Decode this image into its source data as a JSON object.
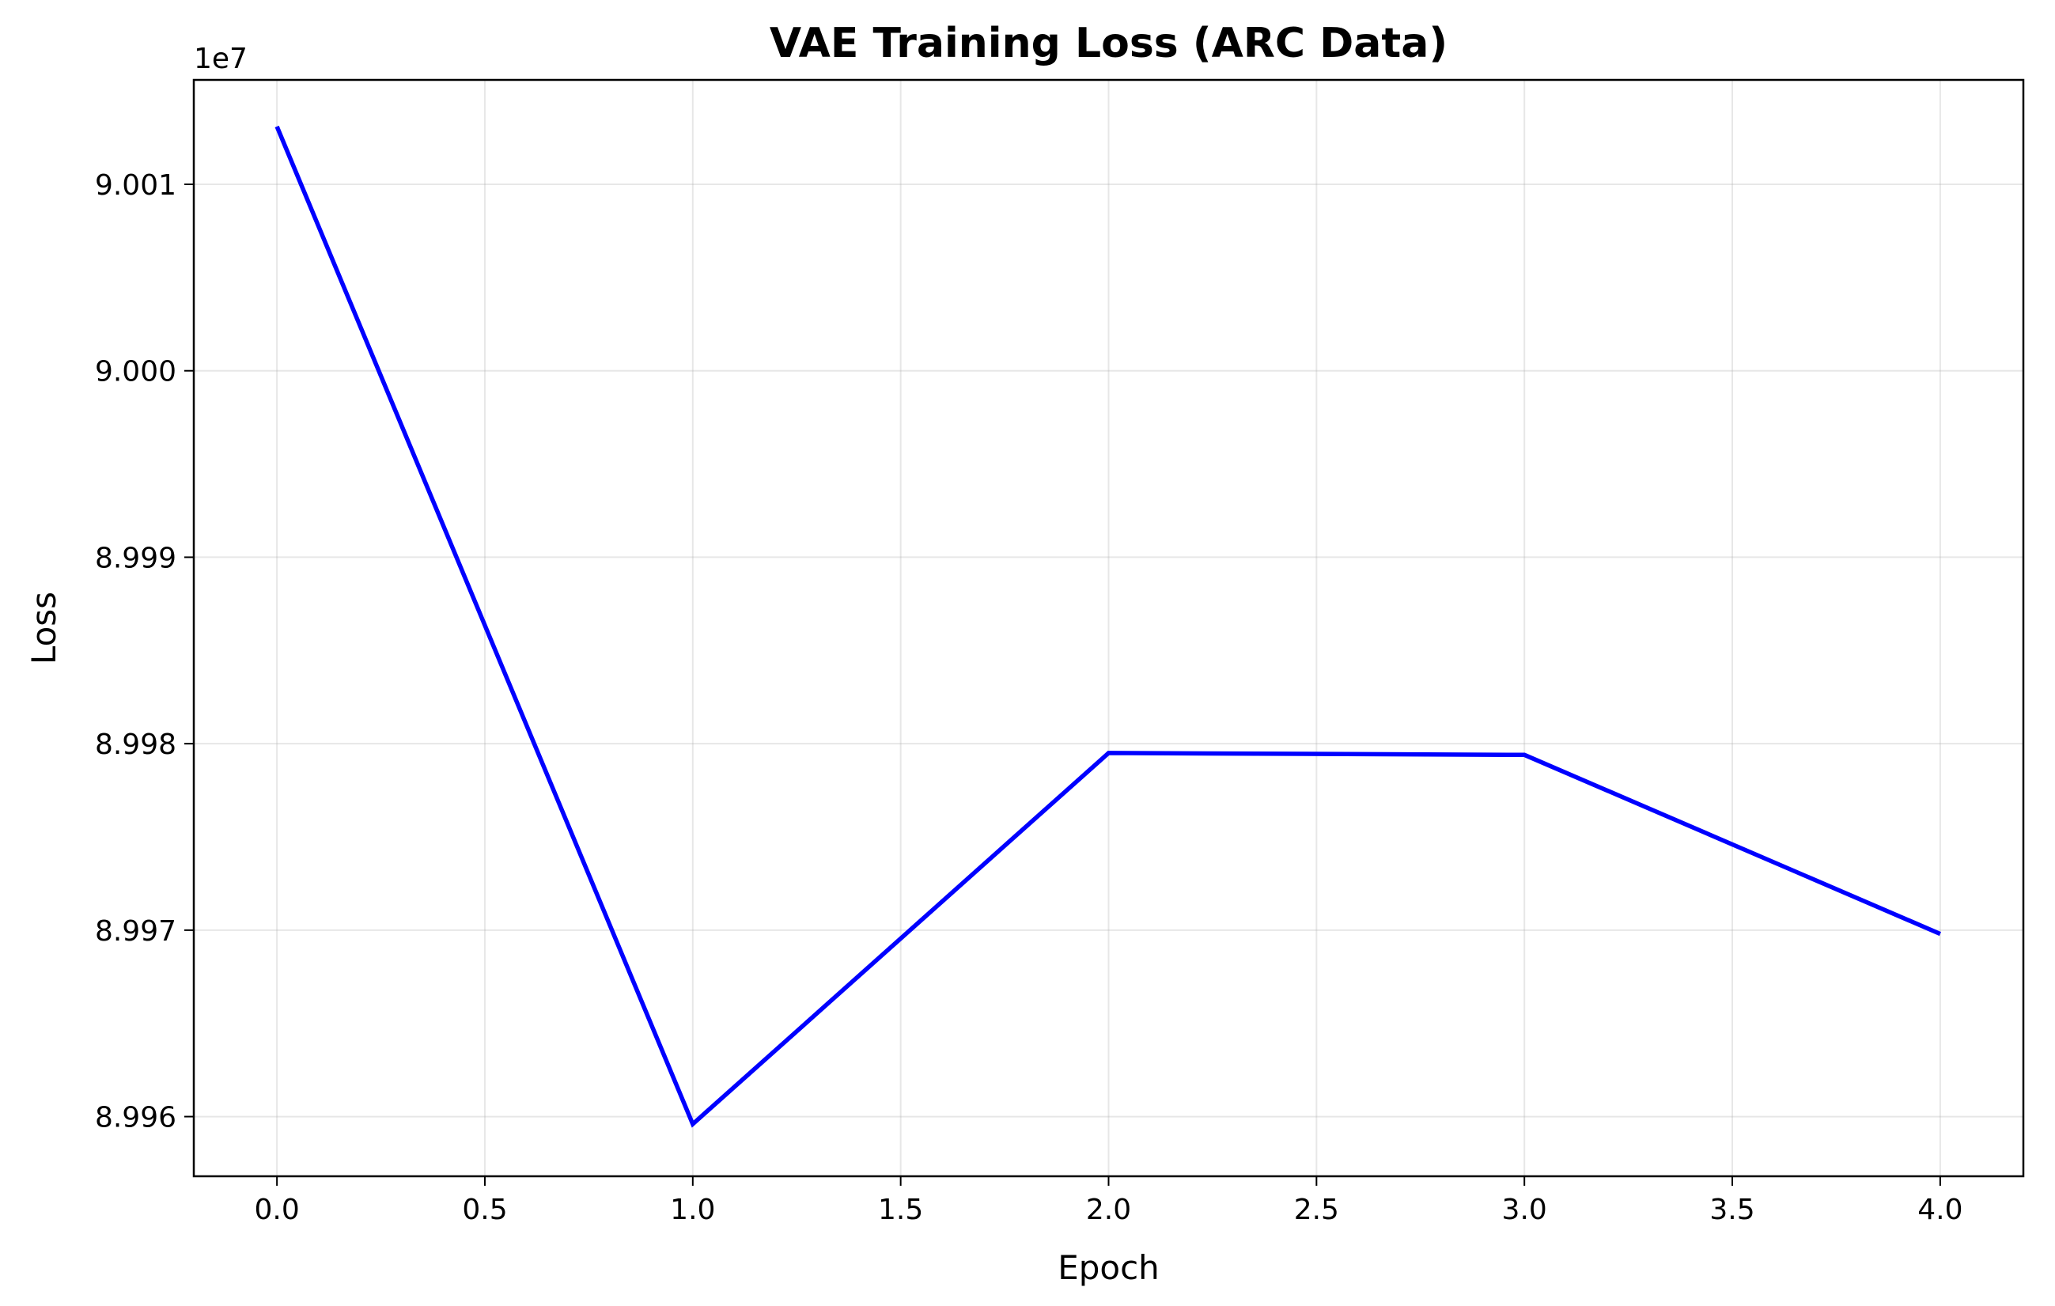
{
  "chart_data": {
    "type": "line",
    "title": "VAE Training Loss (ARC Data)",
    "xlabel": "Epoch",
    "ylabel": "Loss",
    "y_offset_label": "1e7",
    "xlim": [
      -0.2,
      4.2
    ],
    "ylim": [
      89956800,
      90015600
    ],
    "grid": true,
    "line_color": "#0000ff",
    "x_ticks": [
      0.0,
      0.5,
      1.0,
      1.5,
      2.0,
      2.5,
      3.0,
      3.5,
      4.0
    ],
    "x_tick_labels": [
      "0.0",
      "0.5",
      "1.0",
      "1.5",
      "2.0",
      "2.5",
      "3.0",
      "3.5",
      "4.0"
    ],
    "y_ticks": [
      89960000,
      89970000,
      89980000,
      89990000,
      90000000,
      90010000
    ],
    "y_tick_labels": [
      "8.996",
      "8.997",
      "8.998",
      "8.999",
      "9.000",
      "9.001"
    ],
    "series": [
      {
        "name": "loss",
        "x": [
          0,
          1,
          2,
          3,
          4
        ],
        "values": [
          90013100,
          89959600,
          89979500,
          89979400,
          89969800
        ]
      }
    ]
  }
}
